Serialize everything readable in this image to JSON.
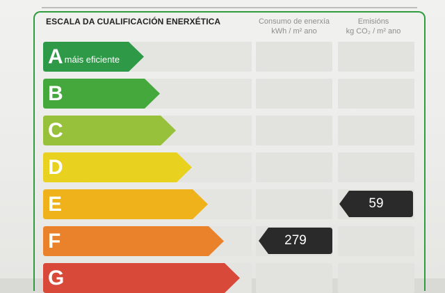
{
  "header": {
    "title": "ESCALA DA CUALIFICACIÓN ENERXÉTICA",
    "consumption_line1": "Consumo de enerxía",
    "consumption_line2": "kWh / m² ano",
    "emissions_line1": "Emisións",
    "emissions_line2": "kg CO₂ / m² ano"
  },
  "scale": [
    {
      "letter": "A",
      "sublabel": "máis eficiente",
      "color": "#2e9a47"
    },
    {
      "letter": "B",
      "sublabel": "",
      "color": "#45a83c"
    },
    {
      "letter": "C",
      "sublabel": "",
      "color": "#97c13b"
    },
    {
      "letter": "D",
      "sublabel": "",
      "color": "#e9d21f"
    },
    {
      "letter": "E",
      "sublabel": "",
      "color": "#efb21a"
    },
    {
      "letter": "F",
      "sublabel": "",
      "color": "#e9822a"
    },
    {
      "letter": "G",
      "sublabel": "",
      "color": "#d9493a"
    }
  ],
  "ratings": {
    "consumption": {
      "class": "F",
      "value": "279"
    },
    "emissions": {
      "class": "E",
      "value": "59"
    }
  },
  "colors": {
    "frame": "#2f9b3d",
    "badge": "#2a2a2a"
  }
}
